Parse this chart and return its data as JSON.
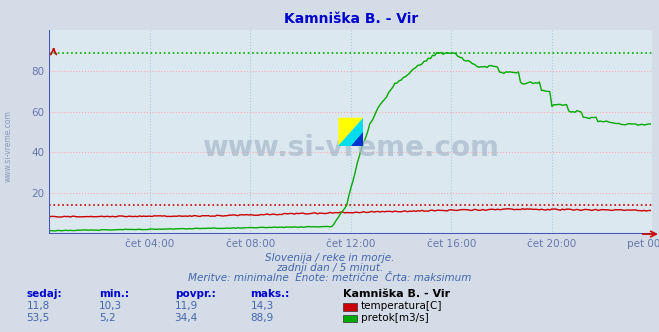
{
  "title": "Kamniška B. - Vir",
  "title_color": "#0000cc",
  "bg_color": "#d4dce8",
  "plot_bg_color": "#dce8f0",
  "grid_color_pink": "#ffaaaa",
  "grid_color_blue": "#aaccdd",
  "xlabel_ticks": [
    "čet 04:00",
    "čet 08:00",
    "čet 12:00",
    "čet 16:00",
    "čet 20:00",
    "pet 00:00"
  ],
  "tick_positions": [
    48,
    96,
    144,
    192,
    240,
    288
  ],
  "xlim": [
    0,
    288
  ],
  "ylim": [
    0,
    100
  ],
  "yticks": [
    20,
    40,
    60,
    80
  ],
  "temp_color": "#cc0000",
  "flow_color": "#00aa00",
  "border_color": "#4455bb",
  "temp_max_line": 14.3,
  "flow_max_line": 88.9,
  "watermark": "www.si-vreme.com",
  "subtitle1": "Slovenija / reke in morje.",
  "subtitle2": "zadnji dan / 5 minut.",
  "subtitle3": "Meritve: minimalne  Enote: metrične  Črta: maksimum",
  "legend_title": "Kamniška B. - Vir",
  "table_headers": [
    "sedaj:",
    "min.:",
    "povpr.:",
    "maks.:"
  ],
  "temp_values": [
    "11,8",
    "10,3",
    "11,9",
    "14,3"
  ],
  "flow_values": [
    "53,5",
    "5,2",
    "34,4",
    "88,9"
  ],
  "temp_label": "temperatura[C]",
  "flow_label": "pretok[m3/s]",
  "sidebar_text": "www.si-vreme.com",
  "tick_label_color": "#6677aa",
  "text_color_blue": "#4466aa",
  "header_color": "#0000cc"
}
